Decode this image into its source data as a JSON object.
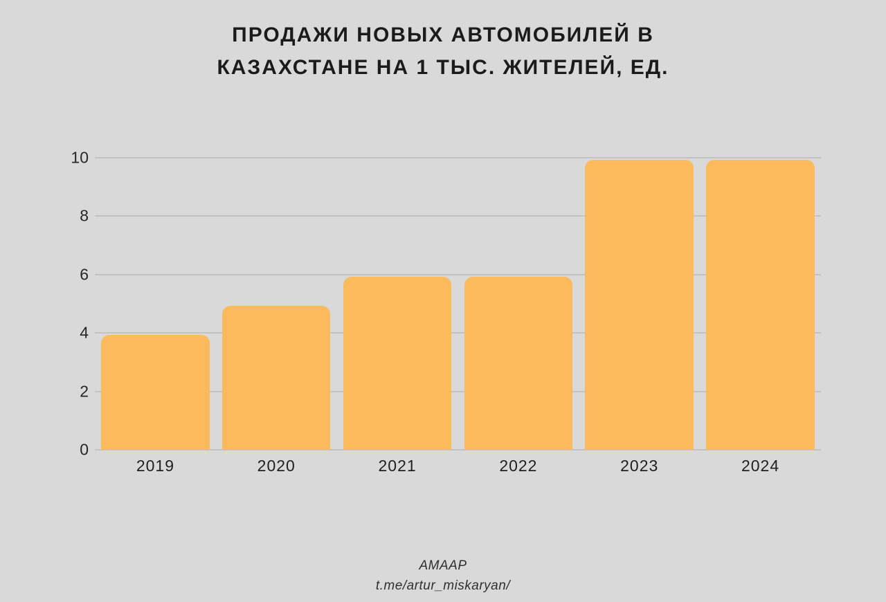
{
  "title": {
    "line1": "ПРОДАЖИ НОВЫХ АВТОМОБИЛЕЙ В",
    "line2": "КАЗАХСТАНЕ НА 1 ТЫС. ЖИТЕЛЕЙ, ЕД."
  },
  "footer": {
    "line1": "AMAAP",
    "line2": "t.me/artur_miskaryan/"
  },
  "chart_data": {
    "type": "bar",
    "title": "ПРОДАЖИ НОВЫХ АВТОМОБИЛЕЙ В КАЗАХСТАНЕ НА 1 ТЫС. ЖИТЕЛЕЙ, ЕД.",
    "categories": [
      "2019",
      "2020",
      "2021",
      "2022",
      "2023",
      "2024"
    ],
    "values": [
      4,
      5,
      6,
      6,
      10,
      10
    ],
    "xlabel": "",
    "ylabel": "",
    "ylim": [
      0,
      10
    ],
    "yticks": [
      0,
      2,
      4,
      6,
      8,
      10
    ],
    "grid": true,
    "legend": false,
    "bar_color": "#fbba5b",
    "background_color": "#d9d9d9",
    "gridline_color": "#c2c2c2"
  }
}
